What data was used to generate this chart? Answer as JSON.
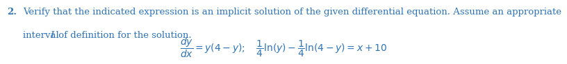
{
  "background_color": "#ffffff",
  "text_color": "#2e74b8",
  "number_label": "2.",
  "line1": "Verify that the indicated expression is an implicit solution of the given differential equation. Assume an appropriate",
  "line2_prefix": "interval ",
  "line2_italic": "I",
  "line2_suffix": " of definition for the solution.",
  "math_latex": "\\dfrac{dy}{dx} = y(4 - y);\\quad \\dfrac{1}{4}\\ln(y) - \\dfrac{1}{4}\\ln(4 - y) = x + 10",
  "fontsize_text": 9.5,
  "fontsize_math": 10.0,
  "fig_width": 8.16,
  "fig_height": 0.93,
  "dpi": 100
}
